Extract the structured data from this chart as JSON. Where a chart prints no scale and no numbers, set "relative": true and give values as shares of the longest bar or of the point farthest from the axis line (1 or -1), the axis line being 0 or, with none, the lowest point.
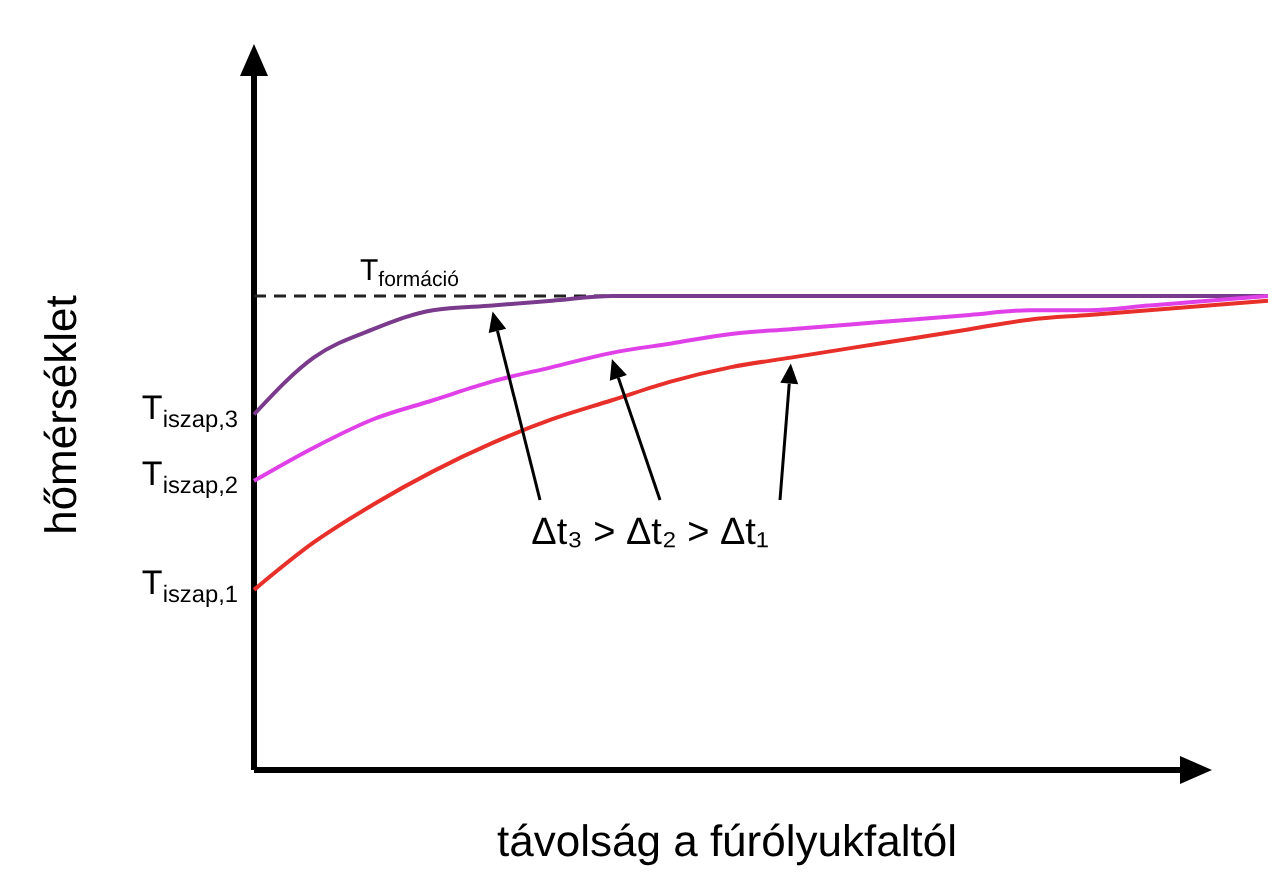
{
  "chart_data": {
    "type": "line",
    "relative": true,
    "xlabel": "távolság a fúrólyukfaltól",
    "ylabel": "hőmérséklet",
    "categories": [
      null,
      null,
      null,
      null,
      null,
      null,
      null,
      null,
      null,
      null,
      null,
      null,
      null,
      null,
      null,
      null,
      null,
      null
    ],
    "series": [
      {
        "color": "#7a3b8c",
        "values": [
          0.75,
          0.87,
          0.93,
          0.97,
          0.98,
          0.99,
          1,
          1,
          1,
          1,
          1,
          1,
          1,
          1,
          1,
          1,
          1,
          1
        ]
      },
      {
        "color": "#e040e8",
        "values": [
          0.61,
          0.68,
          0.74,
          0.78,
          0.82,
          0.85,
          0.88,
          0.9,
          0.92,
          0.93,
          0.94,
          0.95,
          0.96,
          0.97,
          0.97,
          0.98,
          0.99,
          1
        ]
      },
      {
        "color": "#e8302a",
        "values": [
          0.38,
          0.48,
          0.56,
          0.63,
          0.69,
          0.74,
          0.78,
          0.82,
          0.85,
          0.87,
          0.89,
          0.91,
          0.93,
          0.95,
          0.96,
          0.97,
          0.98,
          0.99
        ]
      }
    ],
    "ref_lines": [
      {
        "axis": "y",
        "value": 1,
        "label": "T$_{formáció}$",
        "line_style": "dashed",
        "color": "#222222"
      }
    ],
    "annotations": [
      "T$_{iszap,3}$",
      "T$_{iszap,2}$",
      "T$_{iszap,1}$",
      "Δt₃ > Δt₂ > Δt₁"
    ],
    "line_style": "solid",
    "marker": "none"
  }
}
